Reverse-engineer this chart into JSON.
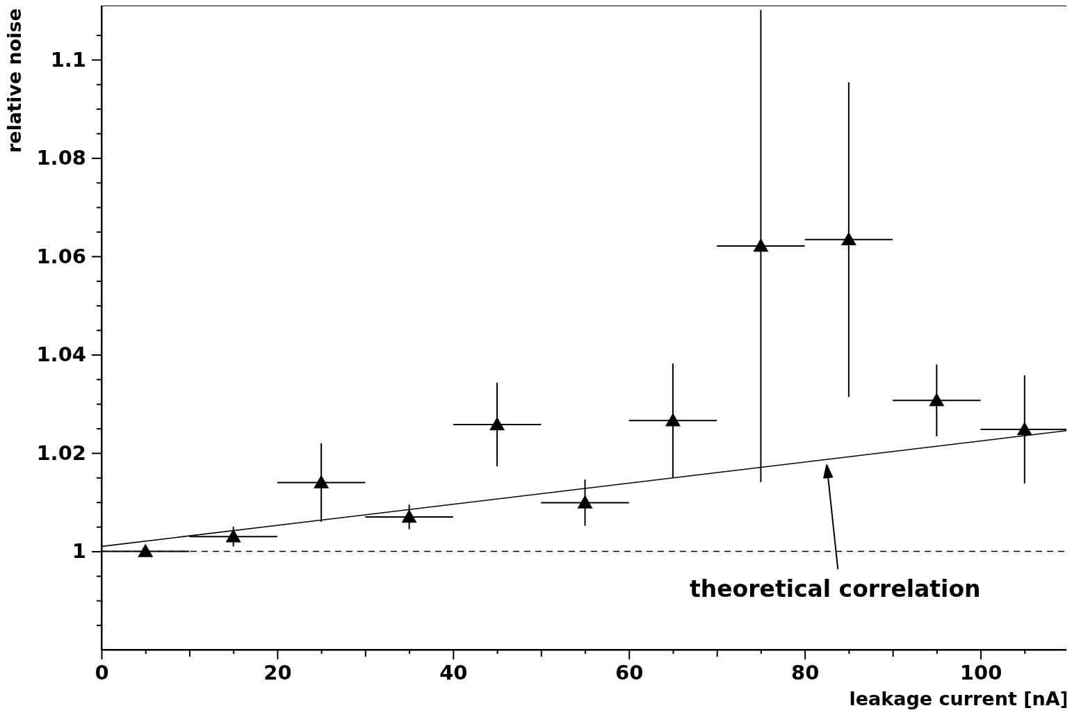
{
  "chart_data": {
    "type": "scatter",
    "xlabel": "leakage current [nA]",
    "ylabel": "relative noise",
    "xlim": [
      0,
      110
    ],
    "ylim": [
      0.98,
      1.111
    ],
    "xticks": [
      0,
      {
        "value": 5,
        "label": null
      },
      {
        "value": 10,
        "label": null
      },
      {
        "value": 15,
        "label": null
      },
      20,
      {
        "value": 25,
        "label": null
      },
      {
        "value": 30,
        "label": null
      },
      {
        "value": 35,
        "label": null
      },
      40,
      {
        "value": 45,
        "label": null
      },
      {
        "value": 50,
        "label": null
      },
      {
        "value": 55,
        "label": null
      },
      60,
      {
        "value": 65,
        "label": null
      },
      {
        "value": 70,
        "label": null
      },
      {
        "value": 75,
        "label": null
      },
      80,
      {
        "value": 85,
        "label": null
      },
      {
        "value": 90,
        "label": null
      },
      {
        "value": 95,
        "label": null
      },
      100,
      {
        "value": 105,
        "label": null
      }
    ],
    "yticks": [
      {
        "value": 0.985,
        "label": null
      },
      {
        "value": 0.99,
        "label": null
      },
      {
        "value": 0.995,
        "label": null
      },
      1,
      {
        "value": 1.005,
        "label": null
      },
      {
        "value": 1.01,
        "label": null
      },
      {
        "value": 1.015,
        "label": null
      },
      1.02,
      {
        "value": 1.025,
        "label": null
      },
      {
        "value": 1.03,
        "label": null
      },
      {
        "value": 1.035,
        "label": null
      },
      1.04,
      {
        "value": 1.045,
        "label": null
      },
      {
        "value": 1.05,
        "label": null
      },
      {
        "value": 1.055,
        "label": null
      },
      1.06,
      {
        "value": 1.065,
        "label": null
      },
      {
        "value": 1.07,
        "label": null
      },
      {
        "value": 1.075,
        "label": null
      },
      1.08,
      {
        "value": 1.085,
        "label": null
      },
      {
        "value": 1.09,
        "label": null
      },
      {
        "value": 1.095,
        "label": null
      },
      1.1,
      {
        "value": 1.105,
        "label": null
      }
    ],
    "grid": false,
    "marker": "triangle",
    "series": [
      {
        "color": "#000000",
        "x": [
          5,
          15,
          25,
          35,
          45,
          55,
          65,
          75,
          85,
          95,
          105
        ],
        "values": [
          1.0,
          1.003,
          1.014,
          1.007,
          1.0258,
          1.0099,
          1.0266,
          1.0621,
          1.0634,
          1.0307,
          1.0248
        ],
        "errors": [
          null,
          0.002,
          0.008,
          0.0025,
          0.0085,
          0.0047,
          0.0116,
          0.048,
          0.032,
          0.0073,
          0.011
        ],
        "xerrors": [
          5,
          5,
          5,
          5,
          5,
          5,
          5,
          5,
          5,
          5,
          5
        ]
      },
      {
        "type": "line",
        "color": "#000000",
        "x": [
          0,
          110
        ],
        "values": [
          1.001,
          1.0246
        ],
        "line_style": "solid",
        "marker": "none"
      }
    ],
    "ref_lines": [
      {
        "axis": "y",
        "value": 1,
        "color": "#000000",
        "line_style": "dashed"
      }
    ],
    "annotations": [
      "theoretical correlation"
    ]
  }
}
